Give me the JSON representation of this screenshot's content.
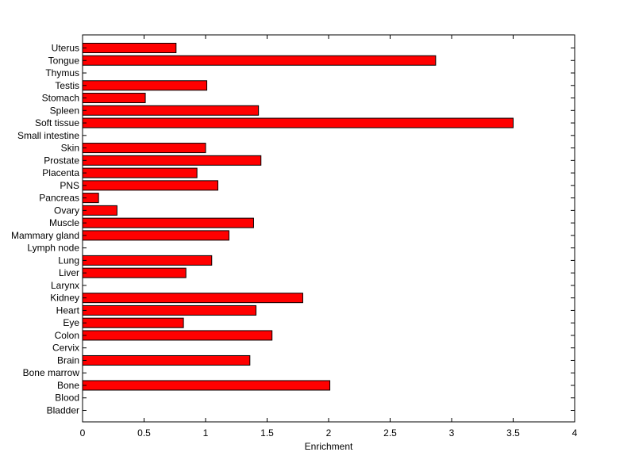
{
  "chart_data": {
    "type": "bar",
    "orientation": "horizontal",
    "xlabel": "Enrichment",
    "ylabel": "",
    "xlim": [
      0,
      4
    ],
    "x_ticks": [
      "0",
      "0.5",
      "1",
      "1.5",
      "2",
      "2.5",
      "3",
      "3.5",
      "4"
    ],
    "bar_color": "#ff0000",
    "grid": false,
    "categories": [
      "Uterus",
      "Tongue",
      "Thymus",
      "Testis",
      "Stomach",
      "Spleen",
      "Soft tissue",
      "Small intestine",
      "Skin",
      "Prostate",
      "Placenta",
      "PNS",
      "Pancreas",
      "Ovary",
      "Muscle",
      "Mammary gland",
      "Lymph node",
      "Lung",
      "Liver",
      "Larynx",
      "Kidney",
      "Heart",
      "Eye",
      "Colon",
      "Cervix",
      "Brain",
      "Bone marrow",
      "Bone",
      "Blood",
      "Bladder"
    ],
    "values": [
      0.76,
      2.87,
      0,
      1.01,
      0.51,
      1.43,
      3.5,
      0,
      1.0,
      1.45,
      0.93,
      1.1,
      0.13,
      0.28,
      1.39,
      1.19,
      0,
      1.05,
      0.84,
      0,
      1.79,
      1.41,
      0.82,
      1.54,
      0,
      1.36,
      0,
      2.01,
      0,
      0
    ]
  }
}
